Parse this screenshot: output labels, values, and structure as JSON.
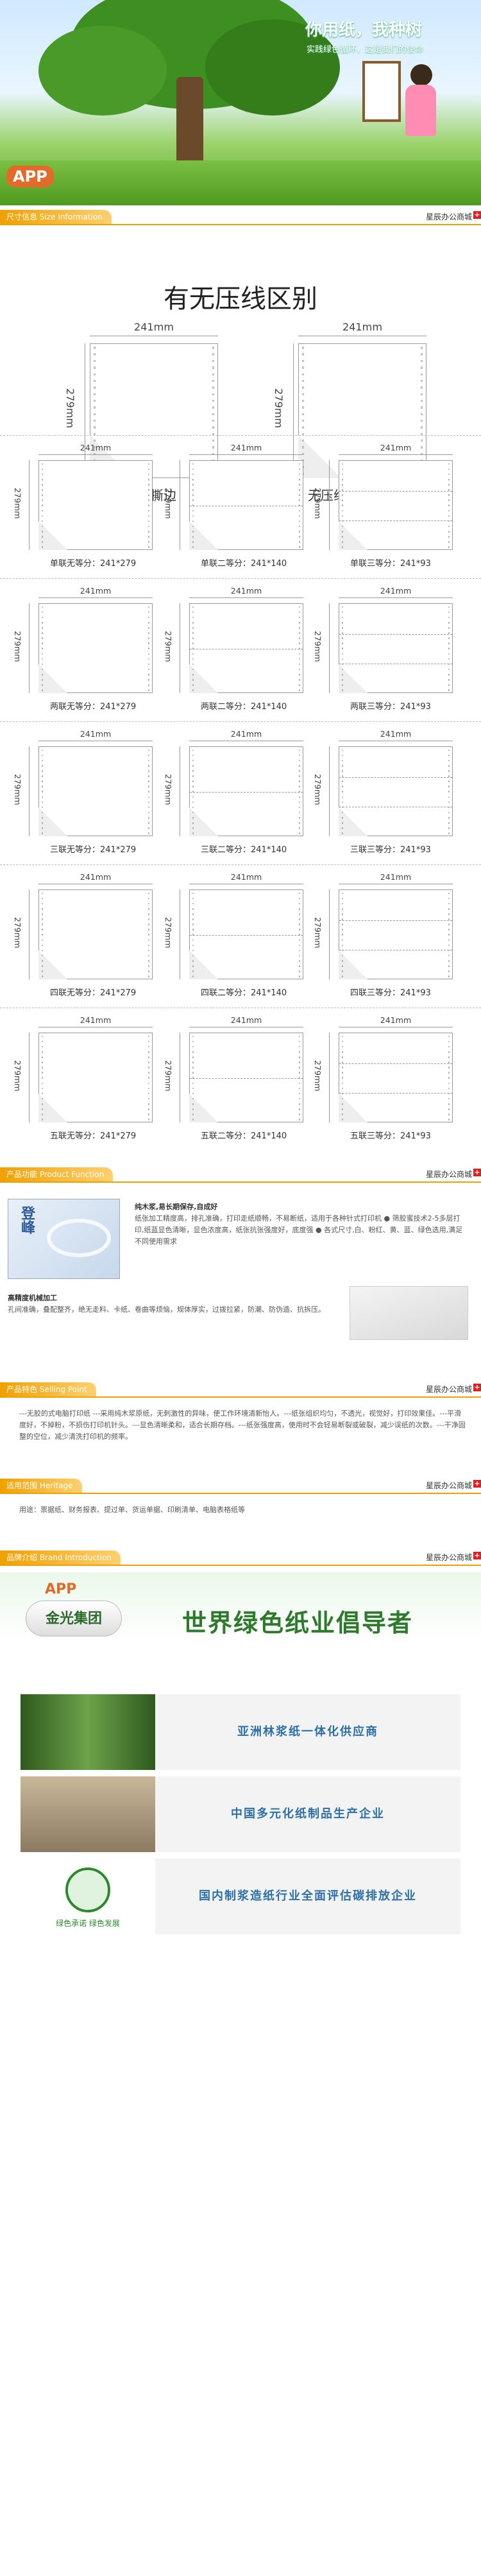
{
  "hero": {
    "headline": "你用纸，我种树",
    "tagline": "实践绿色循环，这是我们的使命",
    "logo": "APP"
  },
  "sections": {
    "size": {
      "label": "尺寸信息 Size Information",
      "shop": "星辰办公商城"
    },
    "function": {
      "label": "产品功能 Product Function",
      "shop": "星辰办公商城"
    },
    "selling": {
      "label": "产品特色 Selling Point",
      "shop": "星辰办公商城"
    },
    "heritage": {
      "label": "适用范围 Heritage",
      "shop": "星辰办公商城"
    },
    "brand": {
      "label": "品牌介绍 Brand Introduction",
      "shop": "星辰办公商城"
    }
  },
  "compare": {
    "title": "有无压线区别",
    "width": "241mm",
    "height": "279mm",
    "left_caption": "无压线可撕边",
    "right_caption": "无压线不可撕边"
  },
  "grid": {
    "width": "241mm",
    "height": "279mm",
    "rows": [
      [
        "单联无等分：241*279",
        "单联二等分：241*140",
        "单联三等分：241*93"
      ],
      [
        "两联无等分：241*279",
        "两联二等分：241*140",
        "两联三等分：241*93"
      ],
      [
        "三联无等分：241*279",
        "三联二等分：241*140",
        "三联三等分：241*93"
      ],
      [
        "四联无等分：241*279",
        "四联二等分：241*140",
        "四联三等分：241*93"
      ],
      [
        "五联无等分：241*279",
        "五联二等分：241*140",
        "五联三等分：241*93"
      ]
    ]
  },
  "product_function": {
    "box_brand": "登峰",
    "p1_title": "纯木浆,易长期保存,自成好",
    "p1_text": "纸张加工精度高，排孔准确，打印走纸顺畅，不易断纸，适用于各种针式打印机 ● 筛胶蜜技术2-5多层打印,纸蓝显色清晰，显色浓度高，纸张抗张强度好，底度强 ● 各式尺寸,白、粉红、黄、蓝、绿色选用,满足不同使用需求",
    "p2_title": "高精度机械加工",
    "p2_text": "孔间准确，叠配整齐，绝无走料、卡纸、卷曲等烦恼，规体厚实，过拨拉紧，防潮、防伪造、抗拆压。"
  },
  "selling_point": {
    "text": "---无胶的式电脑打印纸 ---采用纯木浆原纸，无刺激性的异味，使工作环境清新怡人。---纸张组织均匀，不透光，视觉好，打印效果佳。---平滑度好，不掉粉，不损伤打印机针头。---显色清晰柔和，适合长期存档。---纸张强度高，使用时不会轻易断裂或破裂，减少误纸的次数。---干净固整的空位，减少清洗打印机的频率。"
  },
  "heritage": {
    "text": "用途：票据纸、财务报表、提过单、货运单据、印刷清单、电脑表格纸等"
  },
  "brand": {
    "logo": "APP",
    "group": "金光集团",
    "slogan": "世界绿色纸业倡导者",
    "rows": [
      "亚洲林浆纸一体化供应商",
      "中国多元化纸制品生产企业",
      "国内制浆造纸行业全面评估碳排放企业"
    ],
    "green_badge": "绿色承诺 绿色发展"
  },
  "colors": {
    "accent": "#f0a000",
    "pink": "#f7a8c8",
    "yellow": "#fff3a0",
    "blue": "#a8d6f5",
    "green": "#b8ecc0",
    "purple": "#d9c2f0",
    "brand_blue": "#2d6fa7"
  }
}
